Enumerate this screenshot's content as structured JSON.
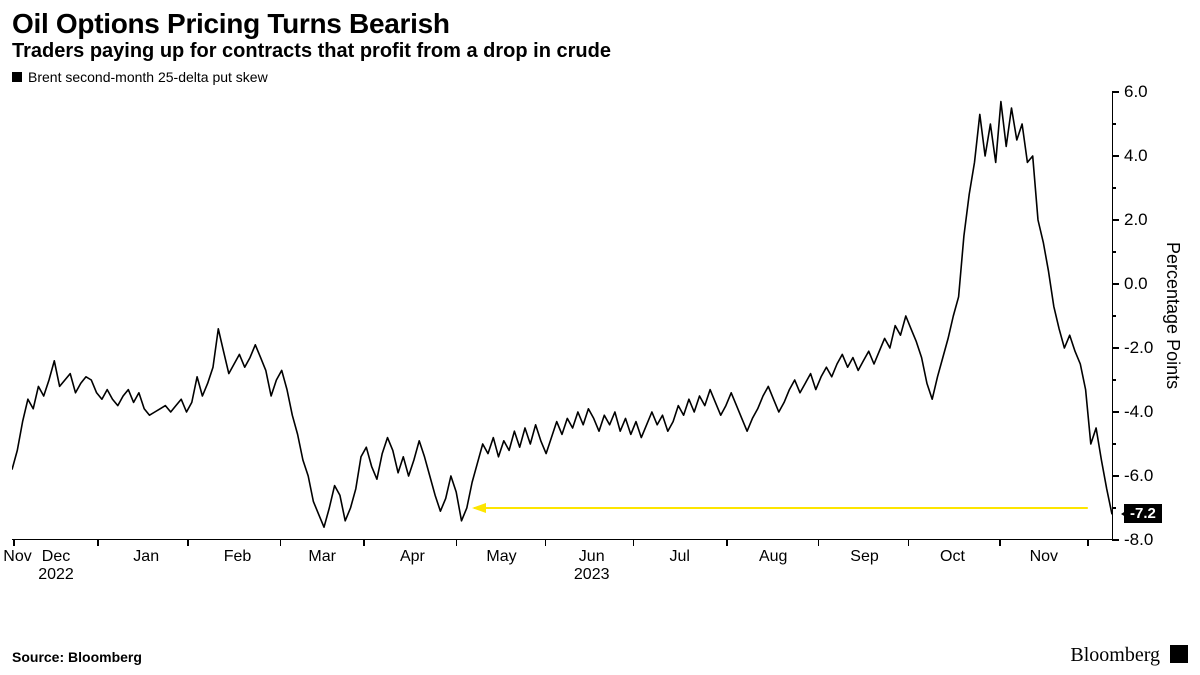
{
  "header": {
    "title": "Oil Options Pricing Turns Bearish",
    "subtitle": "Traders paying up for contracts that profit from a drop in crude"
  },
  "legend": {
    "label": "Brent second-month 25-delta put skew",
    "swatch_color": "#000000"
  },
  "chart": {
    "type": "line",
    "series_color": "#000000",
    "line_width": 1.6,
    "background_color": "#ffffff",
    "y": {
      "min": -8.0,
      "max": 6.0,
      "ticks": [
        6.0,
        4.0,
        2.0,
        0.0,
        -2.0,
        -4.0,
        -6.0,
        -8.0
      ],
      "minor_step": 1.0,
      "title": "Percentage Points",
      "fontsize": 17
    },
    "x": {
      "labels": [
        {
          "t": 0.005,
          "text": "Nov"
        },
        {
          "t": 0.04,
          "text": "Dec"
        },
        {
          "t": 0.122,
          "text": "Jan"
        },
        {
          "t": 0.205,
          "text": "Feb"
        },
        {
          "t": 0.282,
          "text": "Mar"
        },
        {
          "t": 0.364,
          "text": "Apr"
        },
        {
          "t": 0.445,
          "text": "May"
        },
        {
          "t": 0.527,
          "text": "Jun"
        },
        {
          "t": 0.607,
          "text": "Jul"
        },
        {
          "t": 0.692,
          "text": "Aug"
        },
        {
          "t": 0.775,
          "text": "Sep"
        },
        {
          "t": 0.855,
          "text": "Oct"
        },
        {
          "t": 0.938,
          "text": "Nov"
        }
      ],
      "year_labels": [
        {
          "t": 0.04,
          "text": "2022"
        },
        {
          "t": 0.527,
          "text": "2023"
        }
      ],
      "tick_positions": [
        0.002,
        0.078,
        0.16,
        0.244,
        0.32,
        0.404,
        0.485,
        0.565,
        0.65,
        0.733,
        0.815,
        0.898,
        0.978
      ]
    },
    "values": [
      -5.8,
      -5.2,
      -4.3,
      -3.6,
      -3.9,
      -3.2,
      -3.5,
      -3.0,
      -2.4,
      -3.2,
      -3.0,
      -2.8,
      -3.4,
      -3.1,
      -2.9,
      -3.0,
      -3.4,
      -3.6,
      -3.3,
      -3.6,
      -3.8,
      -3.5,
      -3.3,
      -3.7,
      -3.4,
      -3.9,
      -4.1,
      -4.0,
      -3.9,
      -3.8,
      -4.0,
      -3.8,
      -3.6,
      -4.0,
      -3.7,
      -2.9,
      -3.5,
      -3.1,
      -2.6,
      -1.4,
      -2.1,
      -2.8,
      -2.5,
      -2.2,
      -2.6,
      -2.3,
      -1.9,
      -2.3,
      -2.7,
      -3.5,
      -3.0,
      -2.7,
      -3.3,
      -4.1,
      -4.7,
      -5.5,
      -6.0,
      -6.8,
      -7.2,
      -7.6,
      -7.0,
      -6.3,
      -6.6,
      -7.4,
      -7.0,
      -6.4,
      -5.4,
      -5.1,
      -5.7,
      -6.1,
      -5.3,
      -4.8,
      -5.2,
      -5.9,
      -5.4,
      -6.0,
      -5.5,
      -4.9,
      -5.4,
      -6.0,
      -6.6,
      -7.1,
      -6.7,
      -6.0,
      -6.5,
      -7.4,
      -7.0,
      -6.2,
      -5.6,
      -5.0,
      -5.3,
      -4.8,
      -5.4,
      -4.9,
      -5.2,
      -4.6,
      -5.1,
      -4.5,
      -5.0,
      -4.4,
      -4.9,
      -5.3,
      -4.8,
      -4.3,
      -4.7,
      -4.2,
      -4.5,
      -4.0,
      -4.4,
      -3.9,
      -4.2,
      -4.6,
      -4.1,
      -4.4,
      -4.0,
      -4.6,
      -4.2,
      -4.7,
      -4.3,
      -4.8,
      -4.4,
      -4.0,
      -4.4,
      -4.1,
      -4.6,
      -4.3,
      -3.8,
      -4.1,
      -3.6,
      -4.0,
      -3.5,
      -3.8,
      -3.3,
      -3.7,
      -4.1,
      -3.8,
      -3.4,
      -3.8,
      -4.2,
      -4.6,
      -4.2,
      -3.9,
      -3.5,
      -3.2,
      -3.6,
      -4.0,
      -3.7,
      -3.3,
      -3.0,
      -3.4,
      -3.1,
      -2.8,
      -3.3,
      -2.9,
      -2.6,
      -2.9,
      -2.5,
      -2.2,
      -2.6,
      -2.3,
      -2.7,
      -2.4,
      -2.1,
      -2.5,
      -2.1,
      -1.7,
      -2.0,
      -1.3,
      -1.6,
      -1.0,
      -1.4,
      -1.8,
      -2.3,
      -3.1,
      -3.6,
      -2.9,
      -2.3,
      -1.7,
      -1.0,
      -0.4,
      1.5,
      2.8,
      3.8,
      5.3,
      4.0,
      5.0,
      3.8,
      5.7,
      4.3,
      5.5,
      4.5,
      5.0,
      3.8,
      4.0,
      2.0,
      1.3,
      0.4,
      -0.7,
      -1.4,
      -2.0,
      -1.6,
      -2.1,
      -2.5,
      -3.3,
      -5.0,
      -4.5,
      -5.5,
      -6.4,
      -7.2
    ],
    "last_value_badge": "-7.2",
    "annotation_arrow": {
      "from_t": 0.978,
      "to_t": 0.42,
      "y": -7.0,
      "color": "#fde500",
      "width": 2
    }
  },
  "footer": {
    "source": "Source: Bloomberg",
    "brand": "Bloomberg"
  }
}
